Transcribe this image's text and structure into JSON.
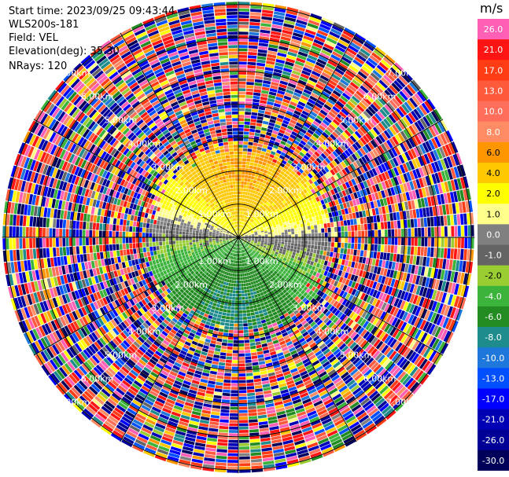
{
  "header": {
    "start_time": "Start time: 2023/09/25 09:43:44",
    "instrument": "WLS200s-181",
    "field": "Field: VEL",
    "elevation": "Elevation(deg): 35.30",
    "nrays": "NRays: 120"
  },
  "colorbar": {
    "unit": "m/s",
    "levels": [
      {
        "label": "26.0",
        "color": "#ff5fb4"
      },
      {
        "label": "21.0",
        "color": "#ff1414"
      },
      {
        "label": "17.0",
        "color": "#ff3c14"
      },
      {
        "label": "13.0",
        "color": "#ff5a3c"
      },
      {
        "label": "10.0",
        "color": "#ff6e5a"
      },
      {
        "label": "8.0",
        "color": "#ff8c64"
      },
      {
        "label": "6.0",
        "color": "#ff9600"
      },
      {
        "label": "4.0",
        "color": "#ffc800"
      },
      {
        "label": "2.0",
        "color": "#ffff00"
      },
      {
        "label": "1.0",
        "color": "#ffff8c"
      },
      {
        "label": "0.0",
        "color": "#808080"
      },
      {
        "label": "-1.0",
        "color": "#646464"
      },
      {
        "label": "-2.0",
        "color": "#9acd32"
      },
      {
        "label": "-4.0",
        "color": "#3cb43c"
      },
      {
        "label": "-6.0",
        "color": "#228b22"
      },
      {
        "label": "-8.0",
        "color": "#1e8c8c"
      },
      {
        "label": "-10.0",
        "color": "#1e78dc"
      },
      {
        "label": "-13.0",
        "color": "#0050ff"
      },
      {
        "label": "-17.0",
        "color": "#0000ff"
      },
      {
        "label": "-21.0",
        "color": "#0000b4"
      },
      {
        "label": "-26.0",
        "color": "#000096"
      },
      {
        "label": "-30.0",
        "color": "#00005a"
      }
    ]
  },
  "chart_data": {
    "type": "ppi",
    "field": "VEL",
    "elevation_deg": 35.3,
    "n_rays": 120,
    "range_ring_labels_km": [
      "1.00km",
      "2.00km",
      "3.00km",
      "4.00km",
      "5.00km",
      "6.00km",
      "7.00km"
    ],
    "ring_radii_km": [
      1,
      2,
      3,
      4,
      5,
      6,
      7
    ],
    "max_range_km": 7.1,
    "clean_region_km": 2.7,
    "wind_profile": {
      "description_vel_sign": "positive toward north half, negative toward south half",
      "max_abs_vel_ms": 10.0
    }
  }
}
